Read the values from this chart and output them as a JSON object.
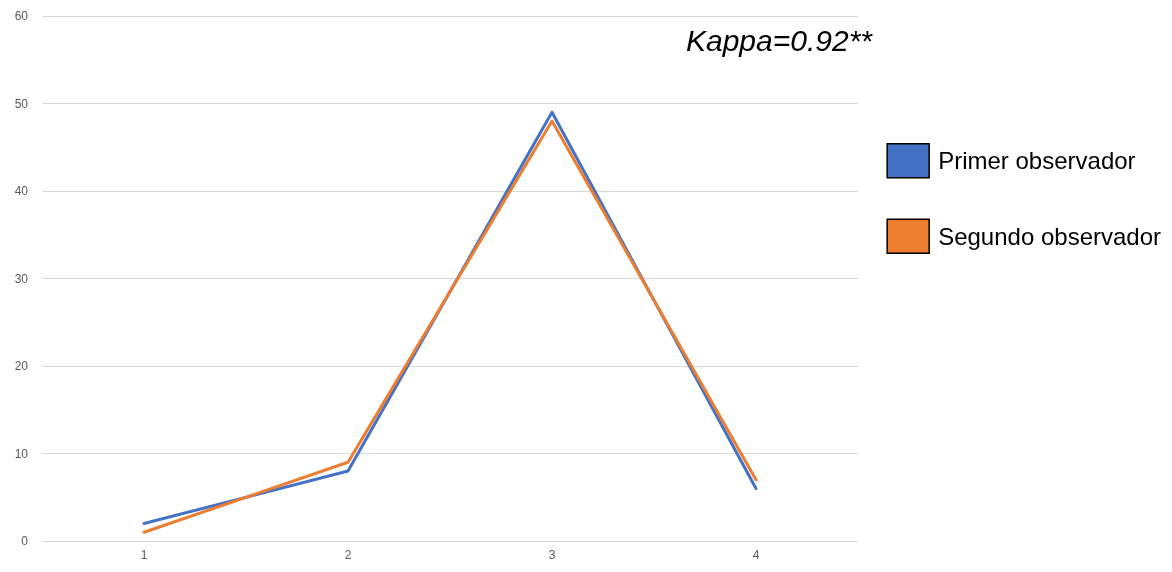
{
  "chart_data": {
    "type": "line",
    "categories": [
      "1",
      "2",
      "3",
      "4"
    ],
    "series": [
      {
        "name": "Primer observador",
        "color": "#4472c4",
        "values": [
          2,
          8,
          49,
          6
        ]
      },
      {
        "name": "Segundo observador",
        "color": "#ed7d31",
        "values": [
          1,
          9,
          48,
          7
        ]
      }
    ],
    "ylim": [
      0,
      60
    ],
    "yticks": [
      0,
      10,
      20,
      30,
      40,
      50,
      60
    ],
    "grid": "y",
    "legend": "right",
    "marker": "none",
    "line_style": "solid",
    "annotations": [
      "Kappa=0.92**"
    ]
  }
}
